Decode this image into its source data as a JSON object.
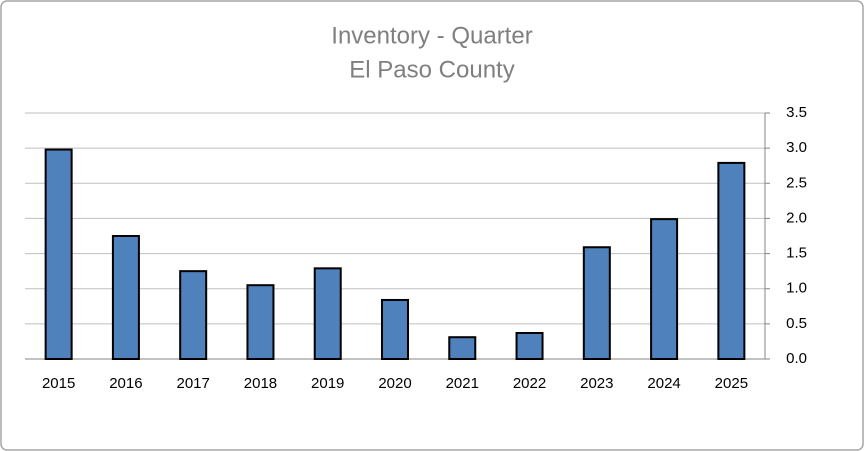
{
  "chart_data": {
    "type": "bar",
    "title": "Inventory - Quarter",
    "subtitle": "El Paso County",
    "categories": [
      "2015",
      "2016",
      "2017",
      "2018",
      "2019",
      "2020",
      "2021",
      "2022",
      "2023",
      "2024",
      "2025"
    ],
    "values": [
      2.98,
      1.75,
      1.25,
      1.05,
      1.29,
      0.84,
      0.31,
      0.37,
      1.59,
      1.99,
      2.79
    ],
    "color": "#4f81bd",
    "ylim": [
      0,
      3.5
    ],
    "yticks": [
      {
        "value": 0,
        "label": "0.0"
      },
      {
        "value": 0.5,
        "label": "0.5"
      },
      {
        "value": 1,
        "label": "1.0"
      },
      {
        "value": 1.5,
        "label": "1.5"
      },
      {
        "value": 2,
        "label": "2.0"
      },
      {
        "value": 2.5,
        "label": "2.5"
      },
      {
        "value": 3,
        "label": "3.0"
      },
      {
        "value": 3.5,
        "label": "3.5"
      }
    ],
    "grid": true,
    "y_axis_side": "right"
  }
}
